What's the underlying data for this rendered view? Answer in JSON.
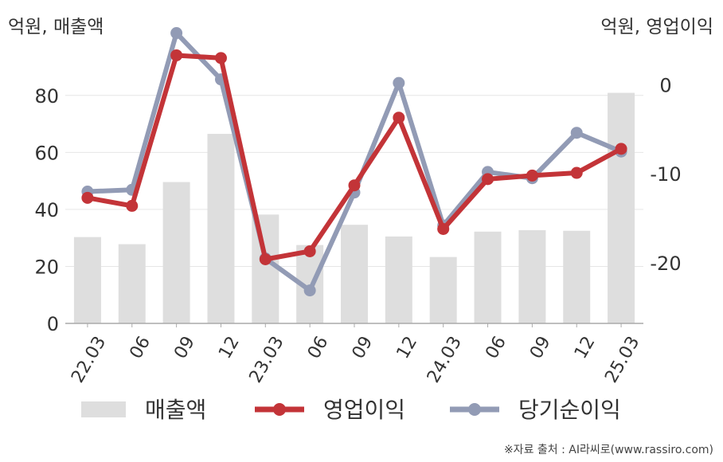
{
  "unit_left": "억원, 매출액",
  "unit_right": "억원, 영업이익",
  "source": "※자료 출처 : AI라씨로(www.rassiro.com)",
  "colors": {
    "revenue": "#dedede",
    "operating_profit": "#c33438",
    "net_income": "#929bb5",
    "grid": "#e6e6e6",
    "axis": "#aaaaaa",
    "text": "#333333"
  },
  "chart_data": {
    "type": "bar",
    "categories": [
      "22.03",
      "06",
      "09",
      "12",
      "23.03",
      "06",
      "09",
      "12",
      "24.03",
      "06",
      "09",
      "12",
      "25.03"
    ],
    "left_axis": {
      "ticks": [
        0,
        20,
        40,
        60,
        80
      ],
      "ylim": [
        0,
        90
      ]
    },
    "right_axis": {
      "ticks": [
        0,
        -10,
        -20
      ],
      "ylim": [
        -26.8,
        2
      ]
    },
    "series": [
      {
        "name": "매출액",
        "kind": "bar",
        "axis": "left",
        "values": [
          30.3,
          27.8,
          49.6,
          66.5,
          38.2,
          27.5,
          34.6,
          30.5,
          23.3,
          32.2,
          32.7,
          32.5,
          80.9
        ]
      },
      {
        "name": "영업이익",
        "kind": "line",
        "axis": "right",
        "values": [
          -12.7,
          -13.6,
          3.3,
          3.0,
          -19.6,
          -18.7,
          -11.3,
          -3.7,
          -16.2,
          -10.6,
          -10.2,
          -9.9,
          -7.2
        ]
      },
      {
        "name": "당기순이익",
        "kind": "line",
        "axis": "right",
        "values": [
          -12.0,
          -11.8,
          5.8,
          0.6,
          -19.5,
          -23.1,
          -12.1,
          0.2,
          -15.8,
          -9.8,
          -10.5,
          -5.4,
          -7.5
        ]
      }
    ],
    "legend_position": "bottom",
    "grid": true
  }
}
